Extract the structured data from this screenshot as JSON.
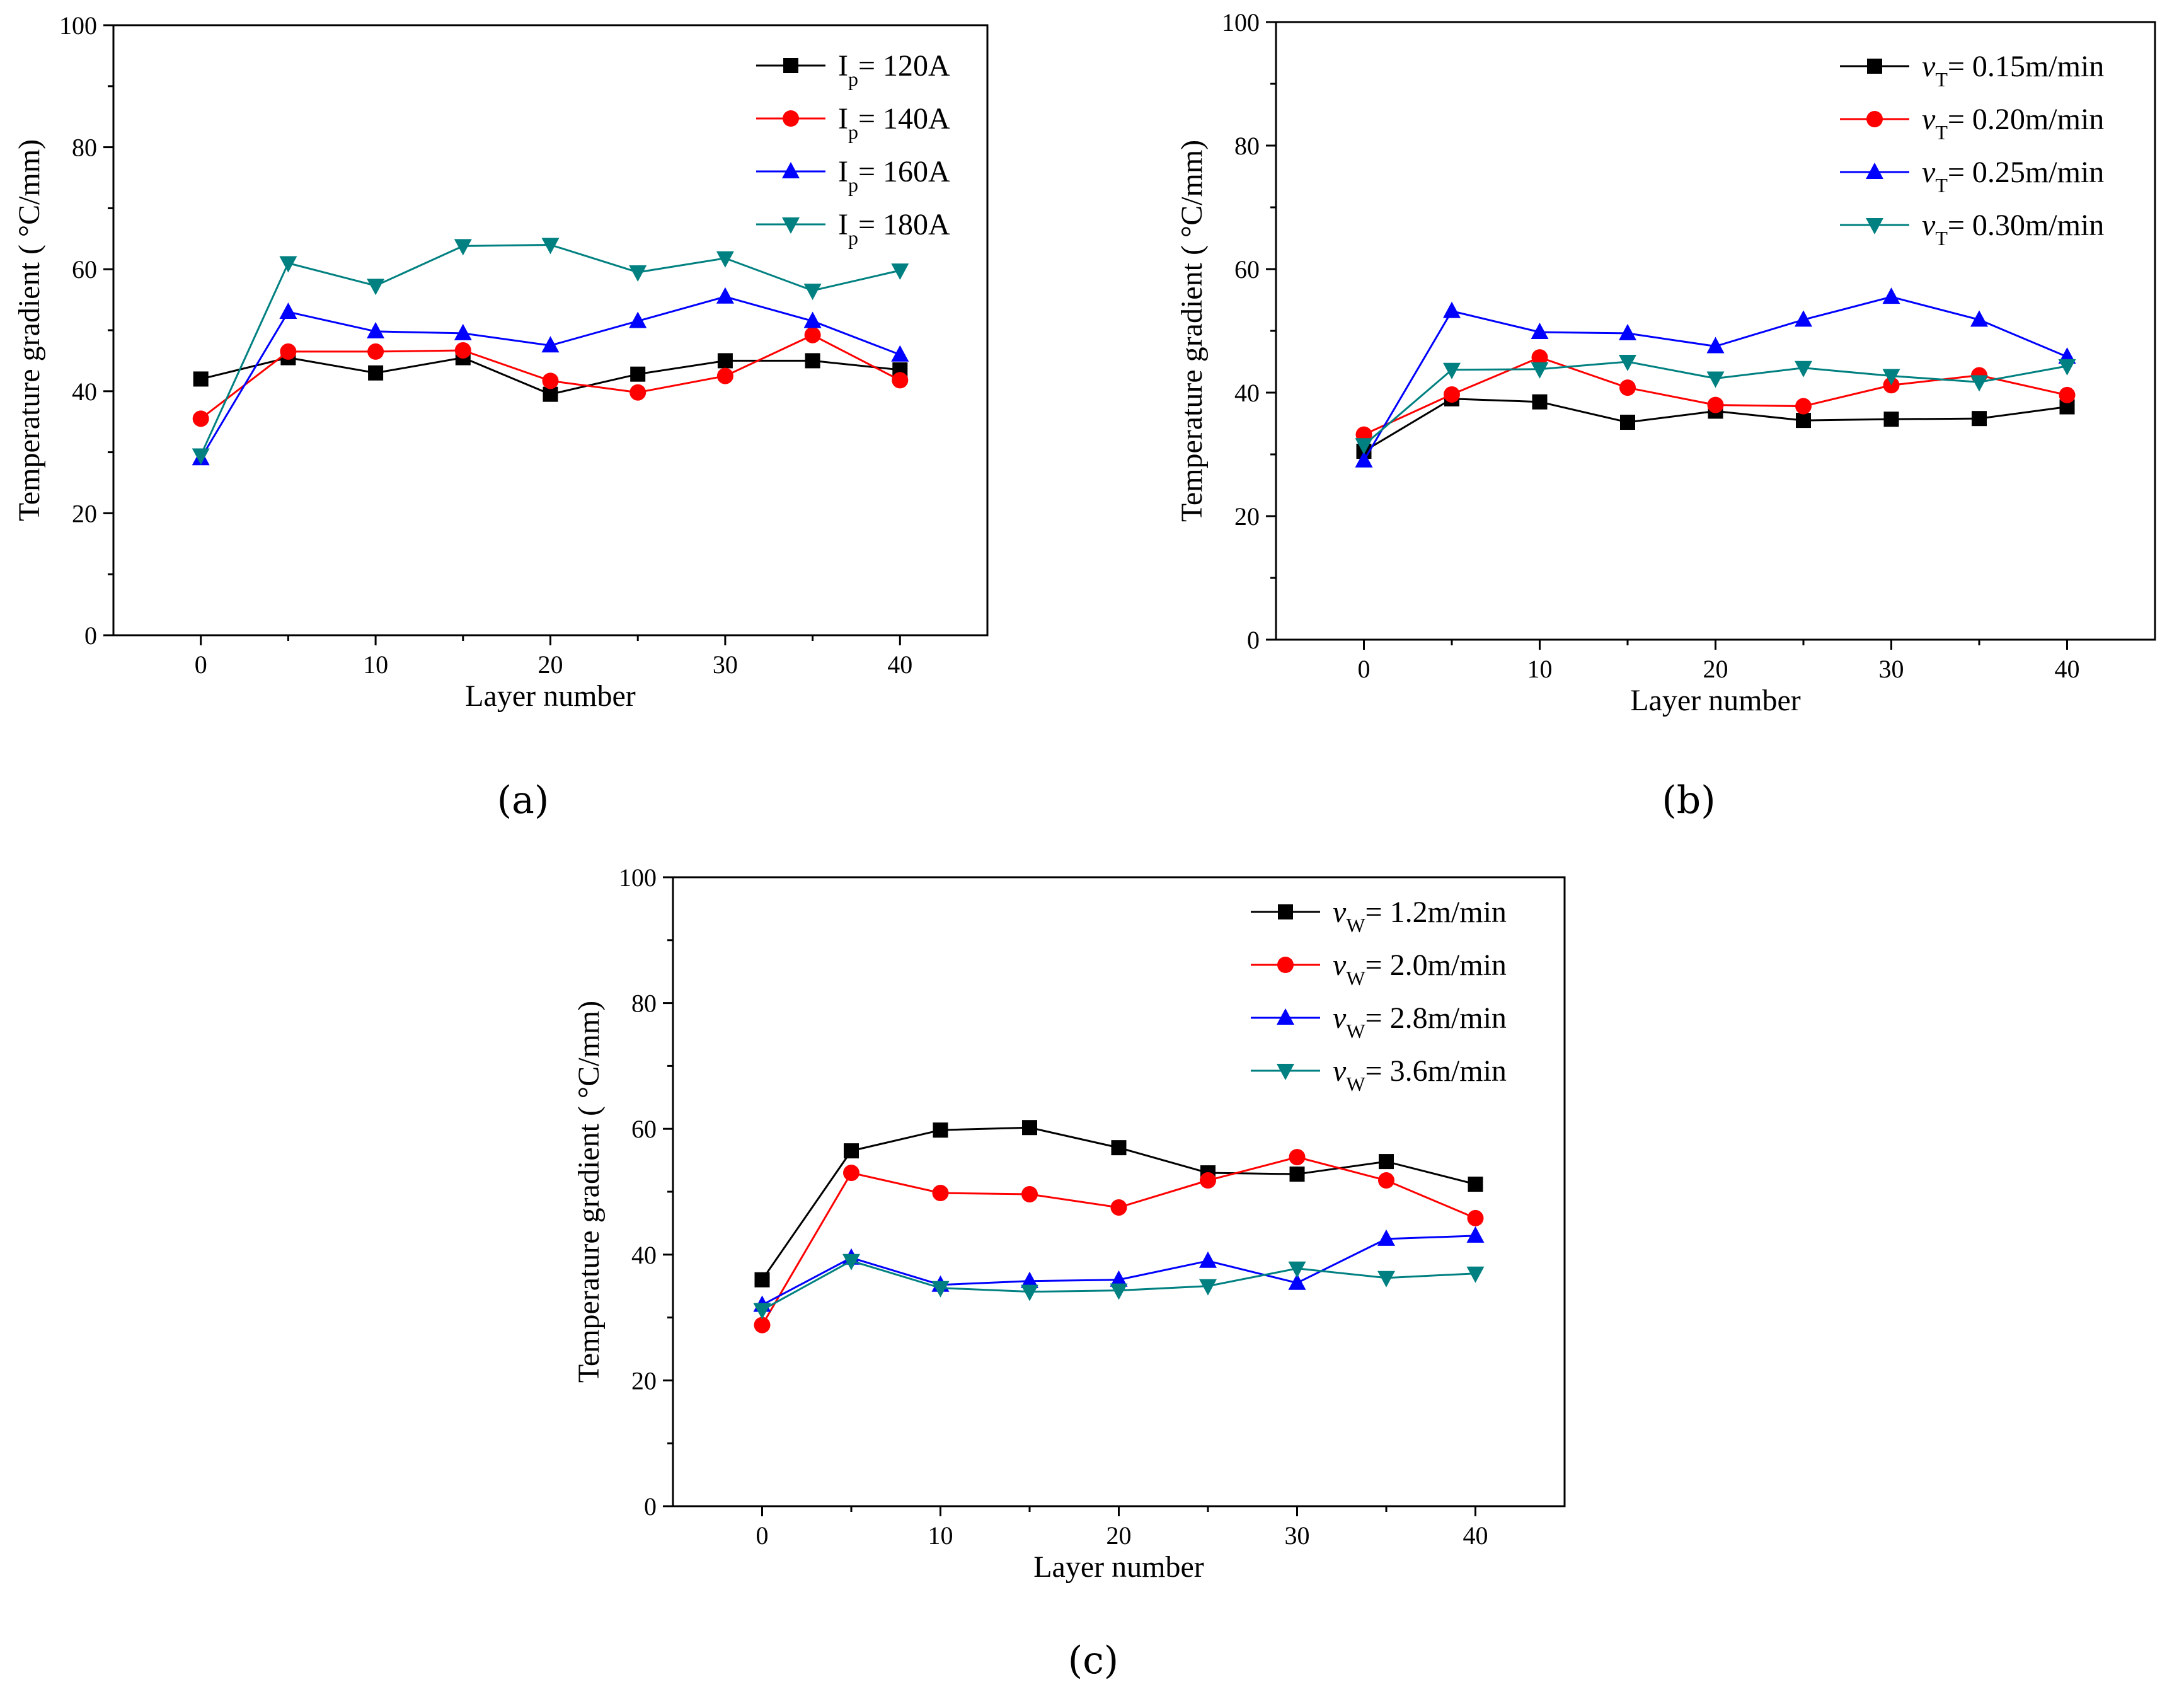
{
  "colors": {
    "black": "#000000",
    "red": "#ff0000",
    "blue": "#0000ff",
    "teal": "#008080"
  },
  "chart_data": [
    {
      "type": "line",
      "panel_label": "(a)",
      "xlabel": "Layer number",
      "ylabel": "Temperature gradient ( °C/mm)",
      "xlim": [
        -5,
        45
      ],
      "ylim": [
        0,
        100
      ],
      "xticks": [
        "0",
        "10",
        "20",
        "30",
        "40"
      ],
      "yticks": [
        "0",
        "20",
        "40",
        "60",
        "80",
        "100"
      ],
      "legend_position": "top-right",
      "x": [
        0,
        5,
        10,
        15,
        20,
        25,
        30,
        35,
        40
      ],
      "series": [
        {
          "name": "I",
          "name_sub": "p",
          "name_rest": "= 120A",
          "color": "#000000",
          "marker": "square",
          "values": [
            42.0,
            45.5,
            43.0,
            45.5,
            39.5,
            42.8,
            45.0,
            45.0,
            43.5
          ]
        },
        {
          "name": "I",
          "name_sub": "p",
          "name_rest": "= 140A",
          "color": "#ff0000",
          "marker": "circle",
          "values": [
            35.5,
            46.5,
            46.5,
            46.7,
            41.7,
            39.8,
            42.5,
            49.2,
            41.8
          ]
        },
        {
          "name": "I",
          "name_sub": "p",
          "name_rest": "= 160A",
          "color": "#0000ff",
          "marker": "triangle-up",
          "values": [
            29.0,
            53.0,
            49.8,
            49.5,
            47.5,
            51.5,
            55.5,
            51.5,
            46.0
          ]
        },
        {
          "name": "I",
          "name_sub": "p",
          "name_rest": "= 180A",
          "color": "#008080",
          "marker": "triangle-down",
          "values": [
            29.5,
            61.0,
            57.3,
            63.8,
            64.0,
            59.5,
            61.8,
            56.5,
            59.8
          ]
        }
      ]
    },
    {
      "type": "line",
      "panel_label": "(b)",
      "xlabel": "Layer number",
      "ylabel": "Temperature gradient ( °C/mm)",
      "xlim": [
        -5,
        45
      ],
      "ylim": [
        0,
        100
      ],
      "xticks": [
        "0",
        "10",
        "20",
        "30",
        "40"
      ],
      "yticks": [
        "0",
        "20",
        "40",
        "60",
        "80",
        "100"
      ],
      "legend_position": "top-right",
      "x": [
        0,
        5,
        10,
        15,
        20,
        25,
        30,
        35,
        40
      ],
      "series": [
        {
          "name": "v",
          "name_sub": "T",
          "name_rest": "= 0.15m/min",
          "color": "#000000",
          "marker": "square",
          "values": [
            30.5,
            39.0,
            38.5,
            35.2,
            37.0,
            35.5,
            35.7,
            35.8,
            37.7
          ]
        },
        {
          "name": "v",
          "name_sub": "T",
          "name_rest": "= 0.20m/min",
          "color": "#ff0000",
          "marker": "circle",
          "values": [
            33.2,
            39.7,
            45.7,
            40.8,
            38.0,
            37.8,
            41.2,
            42.8,
            39.6
          ]
        },
        {
          "name": "v",
          "name_sub": "T",
          "name_rest": "= 0.25m/min",
          "color": "#0000ff",
          "marker": "triangle-up",
          "values": [
            29.0,
            53.2,
            49.8,
            49.6,
            47.5,
            51.8,
            55.5,
            51.8,
            45.8
          ]
        },
        {
          "name": "v",
          "name_sub": "T",
          "name_rest": "= 0.30m/min",
          "color": "#008080",
          "marker": "triangle-down",
          "values": [
            31.5,
            43.7,
            43.8,
            45.0,
            42.3,
            44.0,
            42.7,
            41.7,
            44.3
          ]
        }
      ]
    },
    {
      "type": "line",
      "panel_label": "(c)",
      "xlabel": "Layer number",
      "ylabel": "Temperature gradient ( °C/mm)",
      "xlim": [
        -5,
        45
      ],
      "ylim": [
        0,
        100
      ],
      "xticks": [
        "0",
        "10",
        "20",
        "30",
        "40"
      ],
      "yticks": [
        "0",
        "20",
        "40",
        "60",
        "80",
        "100"
      ],
      "legend_position": "top-right",
      "x": [
        0,
        5,
        10,
        15,
        20,
        25,
        30,
        35,
        40
      ],
      "series": [
        {
          "name": "v",
          "name_sub": "W",
          "name_rest": "= 1.2m/min",
          "color": "#000000",
          "marker": "square",
          "values": [
            36.0,
            56.5,
            59.8,
            60.2,
            57.0,
            53.0,
            52.8,
            54.8,
            51.2
          ]
        },
        {
          "name": "v",
          "name_sub": "W",
          "name_rest": "= 2.0m/min",
          "color": "#ff0000",
          "marker": "circle",
          "values": [
            28.8,
            53.0,
            49.8,
            49.6,
            47.5,
            51.8,
            55.5,
            51.8,
            45.8
          ]
        },
        {
          "name": "v",
          "name_sub": "W",
          "name_rest": "= 2.8m/min",
          "color": "#0000ff",
          "marker": "triangle-up",
          "values": [
            32.0,
            39.5,
            35.2,
            35.8,
            36.0,
            39.0,
            35.5,
            42.5,
            43.0
          ]
        },
        {
          "name": "v",
          "name_sub": "W",
          "name_rest": "= 3.6m/min",
          "color": "#008080",
          "marker": "triangle-down",
          "values": [
            31.2,
            39.0,
            34.7,
            34.1,
            34.3,
            35.0,
            37.8,
            36.3,
            37.0
          ]
        }
      ]
    }
  ]
}
